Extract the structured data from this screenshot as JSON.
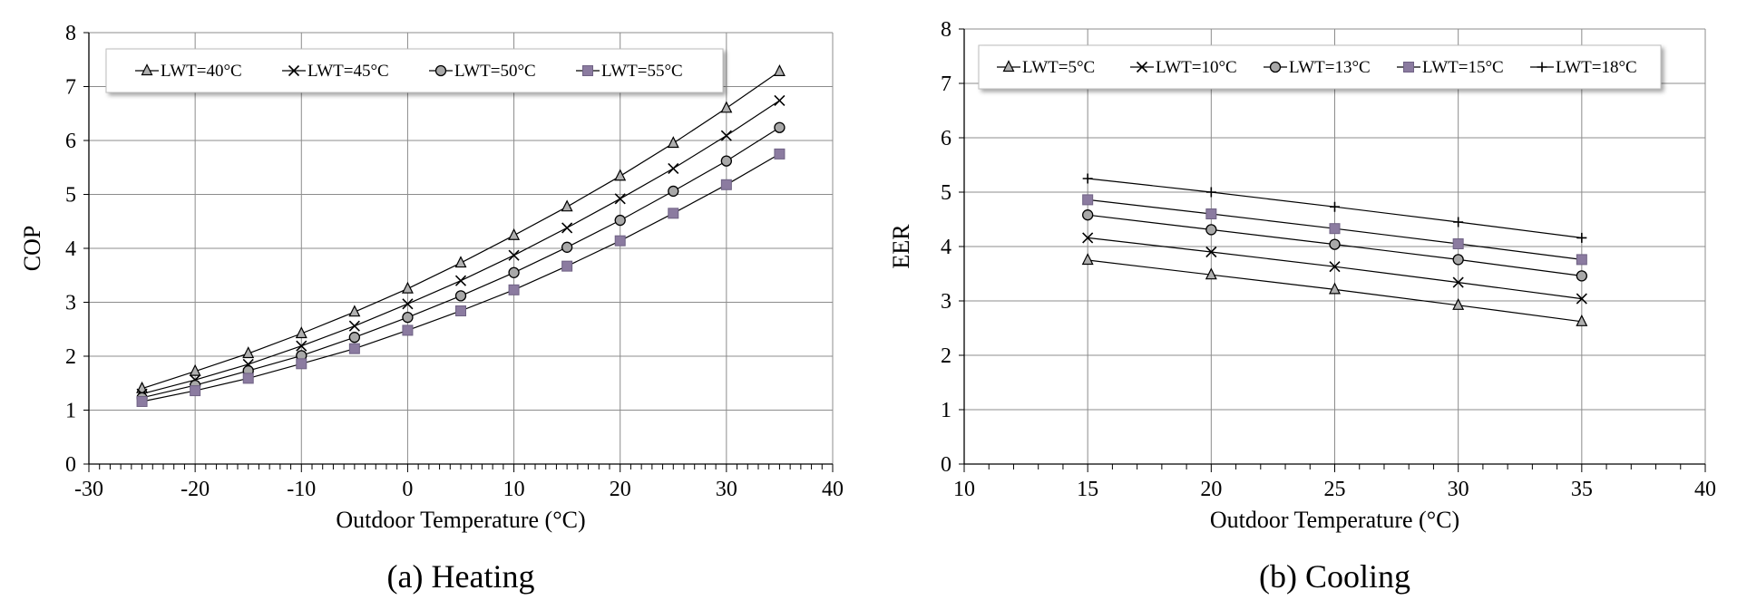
{
  "chart_data": [
    {
      "type": "line",
      "panel_caption": "(a) Heating",
      "xlabel": "Outdoor Temperature (°C)",
      "ylabel": "COP",
      "xlim": [
        -30,
        40
      ],
      "ylim": [
        0,
        8
      ],
      "x_ticks": [
        -30,
        -20,
        -10,
        0,
        10,
        20,
        30,
        40
      ],
      "y_ticks": [
        0,
        1,
        2,
        3,
        4,
        5,
        6,
        7,
        8
      ],
      "grid": true,
      "legend_position": "top-left",
      "x": [
        -25,
        -20,
        -15,
        -10,
        -5,
        0,
        5,
        10,
        15,
        20,
        25,
        30,
        35
      ],
      "series": [
        {
          "name": "LWT=40°C",
          "marker": "triangle",
          "color": "#000000",
          "values": [
            1.4,
            1.72,
            2.05,
            2.42,
            2.82,
            3.25,
            3.73,
            4.24,
            4.77,
            5.34,
            5.95,
            6.6,
            7.28
          ]
        },
        {
          "name": "LWT=45°C",
          "marker": "x",
          "color": "#000000",
          "values": [
            1.3,
            1.56,
            1.85,
            2.19,
            2.56,
            2.97,
            3.4,
            3.87,
            4.38,
            4.92,
            5.48,
            6.09,
            6.74
          ]
        },
        {
          "name": "LWT=50°C",
          "marker": "circle",
          "color": "#000000",
          "values": [
            1.23,
            1.46,
            1.73,
            2.01,
            2.35,
            2.72,
            3.12,
            3.55,
            4.02,
            4.52,
            5.06,
            5.62,
            6.24
          ]
        },
        {
          "name": "LWT=55°C",
          "marker": "square",
          "color": "#8B7BA0",
          "values": [
            1.16,
            1.36,
            1.59,
            1.86,
            2.14,
            2.48,
            2.84,
            3.23,
            3.67,
            4.14,
            4.65,
            5.18,
            5.75
          ]
        }
      ]
    },
    {
      "type": "line",
      "panel_caption": "(b) Cooling",
      "xlabel": "Outdoor Temperature (°C)",
      "ylabel": "EER",
      "xlim": [
        10,
        40
      ],
      "ylim": [
        0,
        8
      ],
      "x_ticks": [
        10,
        15,
        20,
        25,
        30,
        35,
        40
      ],
      "y_ticks": [
        0,
        1,
        2,
        3,
        4,
        5,
        6,
        7,
        8
      ],
      "grid": true,
      "legend_position": "top",
      "x": [
        15,
        20,
        25,
        30,
        35
      ],
      "series": [
        {
          "name": "LWT=5°C",
          "marker": "triangle",
          "color": "#000000",
          "values": [
            3.75,
            3.48,
            3.21,
            2.92,
            2.62
          ]
        },
        {
          "name": "LWT=10°C",
          "marker": "x",
          "color": "#000000",
          "values": [
            4.16,
            3.9,
            3.63,
            3.34,
            3.04
          ]
        },
        {
          "name": "LWT=13°C",
          "marker": "circle",
          "color": "#000000",
          "values": [
            4.58,
            4.31,
            4.04,
            3.76,
            3.46
          ]
        },
        {
          "name": "LWT=15°C",
          "marker": "square",
          "color": "#8B7BA0",
          "values": [
            4.86,
            4.6,
            4.33,
            4.05,
            3.76
          ]
        },
        {
          "name": "LWT=18°C",
          "marker": "plus",
          "color": "#000000",
          "values": [
            5.25,
            5.0,
            4.73,
            4.45,
            4.16
          ]
        }
      ]
    }
  ]
}
